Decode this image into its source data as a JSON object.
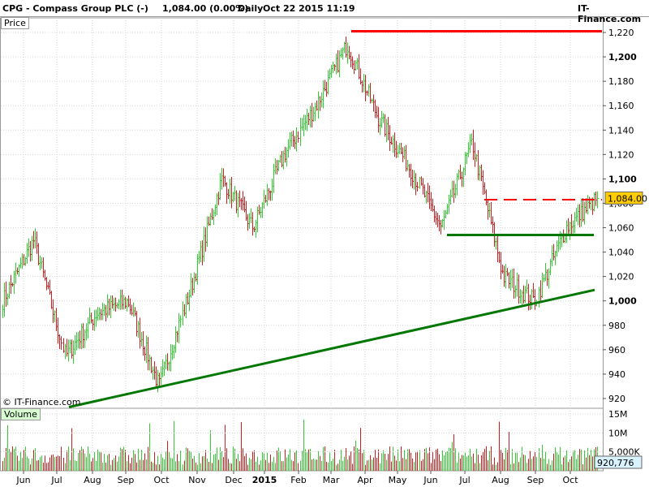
{
  "header": {
    "title": "CPG - Compass Group PLC (-)",
    "quote": "1,084.00 (0.00%)",
    "period": "Daily",
    "datetime": "Oct 22 2015 11:19",
    "brand": "IT-Finance.com"
  },
  "panels": {
    "price_label": "Price",
    "volume_label": "Volume",
    "watermark": "© IT-Finance.com"
  },
  "colors": {
    "up": "#33cc33",
    "down": "#cc2020",
    "resistance": "#ff0000",
    "support": "#007700",
    "price_tag_bg": "#ffcc00",
    "volume_tag_bg": "#d9f2ff",
    "volume_label_bg": "#d7ffd2"
  },
  "chart_data": [
    {
      "type": "candlestick",
      "title": "CPG - Compass Group PLC (-)",
      "x_ticks": [
        "Jun",
        "Jul",
        "Aug",
        "Sep",
        "Oct",
        "Nov",
        "Dec",
        "2015",
        "Feb",
        "Mar",
        "Apr",
        "May",
        "Jun",
        "Jul",
        "Aug",
        "Sep",
        "Oct"
      ],
      "y_ticks": [
        920,
        940,
        960,
        980,
        1000,
        1020,
        1040,
        1060,
        1080,
        1100,
        1120,
        1140,
        1160,
        1180,
        1200,
        1220
      ],
      "y_tick_labels": [
        "920",
        "940",
        "960",
        "980",
        "1,000",
        "1,020",
        "1,040",
        "1,060",
        "1,080",
        "1,100",
        "1,120",
        "1,140",
        "1,160",
        "1,180",
        "1,200",
        "1,220"
      ],
      "ylim": [
        912,
        1232
      ],
      "grid": true,
      "last_price": 1084,
      "last_price_label": "1,084.00",
      "close_path": [
        {
          "x": "Jun",
          "y": 1000
        },
        {
          "x": "Jul",
          "y": 1050
        },
        {
          "x": "Aug",
          "y": 955
        },
        {
          "x": "Sep",
          "y": 990
        },
        {
          "x": "Oct",
          "y": 1000
        },
        {
          "x": "Oct",
          "y": 930
        },
        {
          "x": "Nov",
          "y": 1010
        },
        {
          "x": "Dec",
          "y": 1100
        },
        {
          "x": "2015",
          "y": 1060
        },
        {
          "x": "Feb",
          "y": 1120
        },
        {
          "x": "Mar",
          "y": 1160
        },
        {
          "x": "Apr",
          "y": 1210
        },
        {
          "x": "May",
          "y": 1150
        },
        {
          "x": "Jun",
          "y": 1110
        },
        {
          "x": "Jun",
          "y": 1060
        },
        {
          "x": "Jul",
          "y": 1130
        },
        {
          "x": "Aug",
          "y": 1020
        },
        {
          "x": "Sep",
          "y": 1000
        },
        {
          "x": "Oct",
          "y": 1060
        },
        {
          "x": "Oct",
          "y": 1084
        }
      ],
      "annotations": [
        {
          "type": "resistance",
          "style": "solid",
          "value": 1221
        },
        {
          "type": "resistance",
          "style": "dashed",
          "value": 1083
        },
        {
          "type": "support",
          "style": "solid",
          "value": 1054
        },
        {
          "type": "trendline",
          "style": "solid",
          "from": {
            "x": "Jul",
            "y": 913
          },
          "to": {
            "x": "Oct",
            "y": 1009
          }
        }
      ]
    },
    {
      "type": "bar",
      "title": "Volume",
      "y_tick_labels": [
        "5,000K",
        "10M",
        "15M"
      ],
      "y_ticks": [
        5000000,
        10000000,
        15000000
      ],
      "last_value_label": "920,776"
    }
  ]
}
